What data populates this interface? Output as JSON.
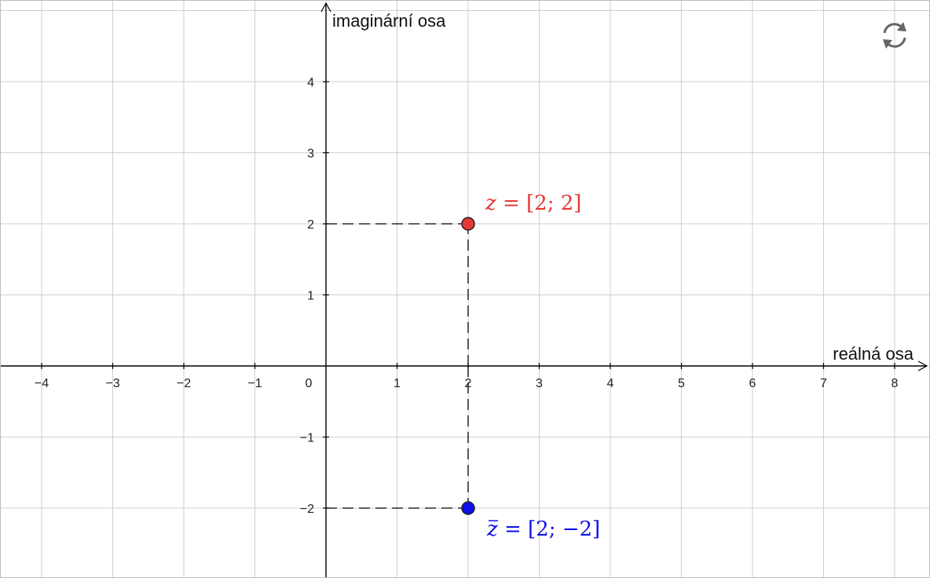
{
  "colors": {
    "grid": "#cfcfcf",
    "axis": "#000000",
    "point_z": "#e53935",
    "point_zbar": "#1010ee",
    "label_z": "#e53935",
    "label_zbar": "#1010ee",
    "dashes": "#000000"
  },
  "toolbar": {
    "reset_icon": "refresh-icon"
  },
  "chart_data": {
    "type": "scatter",
    "xlabel": "reálná osa",
    "ylabel": "imaginární osa",
    "xlim": [
      -4.5,
      8.5
    ],
    "ylim": [
      -3,
      5.2
    ],
    "grid": true,
    "x_ticks": [
      "−4",
      "−3",
      "−2",
      "−1",
      "0",
      "1",
      "2",
      "3",
      "4",
      "5",
      "6",
      "7",
      "8"
    ],
    "x_tick_values": [
      -4,
      -3,
      -2,
      -1,
      0,
      1,
      2,
      3,
      4,
      5,
      6,
      7,
      8
    ],
    "y_ticks": [
      "−2",
      "−1",
      "1",
      "2",
      "3",
      "4"
    ],
    "y_tick_values": [
      -2,
      -1,
      1,
      2,
      3,
      4
    ],
    "points": [
      {
        "name": "z",
        "x": 2,
        "y": 2,
        "label_var": "z",
        "label_rest": " = [2; 2]",
        "overline": false,
        "color_key": "point_z"
      },
      {
        "name": "zbar",
        "x": 2,
        "y": -2,
        "label_var": "z",
        "label_rest": " = [2; −2]",
        "overline": true,
        "color_key": "point_zbar"
      }
    ]
  }
}
